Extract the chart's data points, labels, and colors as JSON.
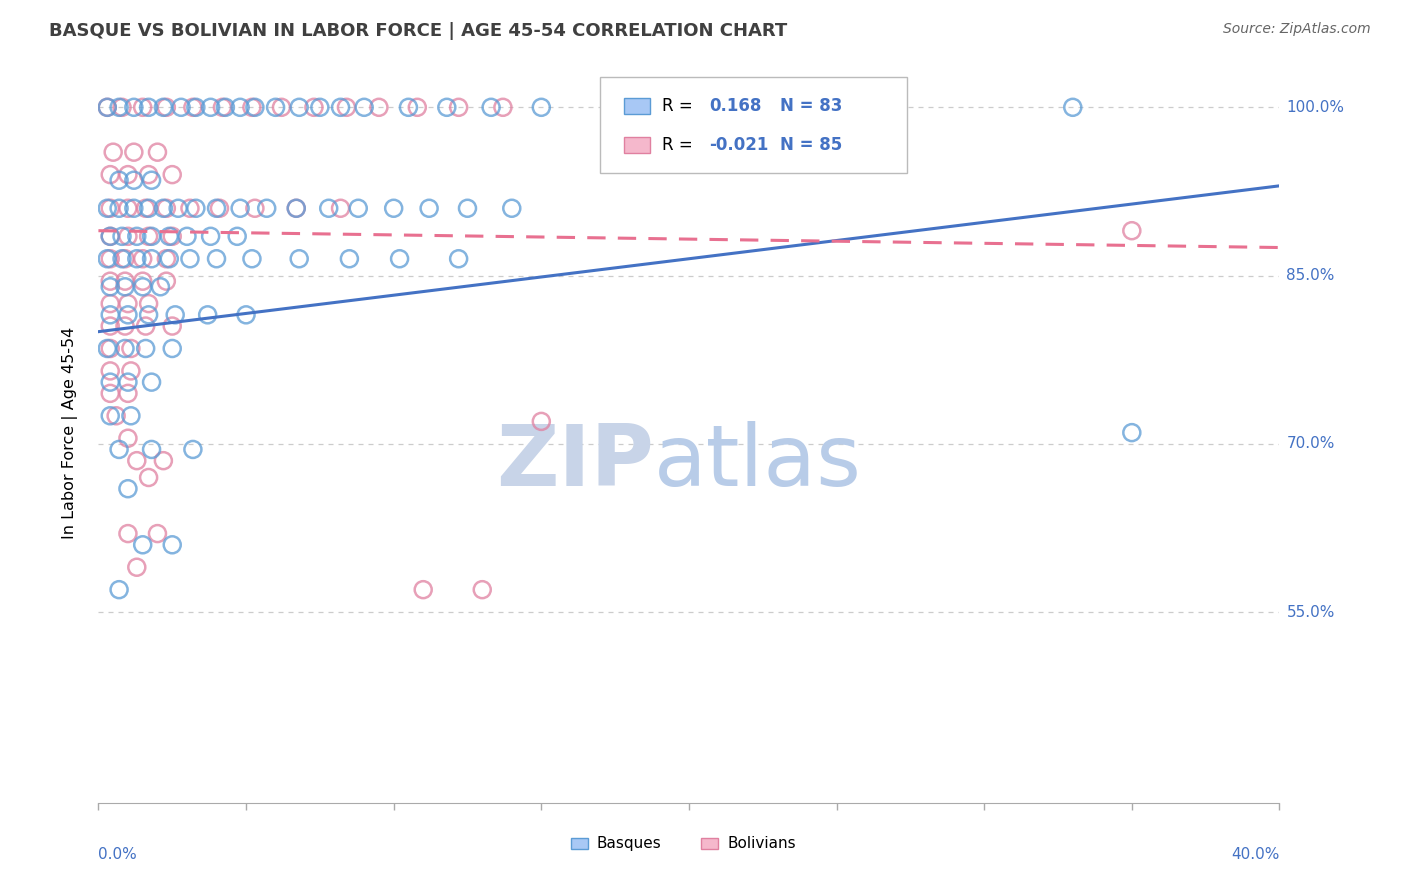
{
  "title": "BASQUE VS BOLIVIAN IN LABOR FORCE | AGE 45-54 CORRELATION CHART",
  "source": "Source: ZipAtlas.com",
  "ylabel": "In Labor Force | Age 45-54",
  "xlim": [
    0.0,
    0.4
  ],
  "ylim": [
    0.38,
    1.04
  ],
  "yticks": [
    0.55,
    0.7,
    0.85,
    1.0
  ],
  "ytick_labels": [
    "55.0%",
    "70.0%",
    "85.0%",
    "100.0%"
  ],
  "xtick_left": "0.0%",
  "xtick_right": "40.0%",
  "watermark_ZIP": "ZIP",
  "watermark_atlas": "atlas",
  "legend_basque_R": "0.168",
  "legend_basque_N": "83",
  "legend_bolivian_R": "-0.021",
  "legend_bolivian_N": "85",
  "basque_fill": "#a8c8f5",
  "basque_edge": "#5b9bd5",
  "bolivian_fill": "#f5b8cc",
  "bolivian_edge": "#e080a0",
  "basque_line": "#4472c4",
  "bolivian_line": "#e87090",
  "grid_color": "#cccccc",
  "basque_x": [
    0.003,
    0.007,
    0.012,
    0.017,
    0.022,
    0.028,
    0.033,
    0.038,
    0.043,
    0.048,
    0.053,
    0.06,
    0.068,
    0.075,
    0.082,
    0.09,
    0.105,
    0.118,
    0.133,
    0.15,
    0.007,
    0.012,
    0.018,
    0.003,
    0.007,
    0.012,
    0.017,
    0.022,
    0.027,
    0.033,
    0.04,
    0.048,
    0.057,
    0.067,
    0.078,
    0.088,
    0.1,
    0.112,
    0.125,
    0.14,
    0.004,
    0.008,
    0.013,
    0.018,
    0.024,
    0.03,
    0.038,
    0.047,
    0.003,
    0.008,
    0.013,
    0.018,
    0.024,
    0.031,
    0.04,
    0.052,
    0.068,
    0.085,
    0.102,
    0.122,
    0.004,
    0.009,
    0.015,
    0.021,
    0.004,
    0.01,
    0.017,
    0.026,
    0.037,
    0.05,
    0.003,
    0.009,
    0.016,
    0.025,
    0.004,
    0.01,
    0.018,
    0.004,
    0.011,
    0.007,
    0.018,
    0.032,
    0.01,
    0.015,
    0.025,
    0.007,
    0.35,
    0.33
  ],
  "basque_y": [
    1.0,
    1.0,
    1.0,
    1.0,
    1.0,
    1.0,
    1.0,
    1.0,
    1.0,
    1.0,
    1.0,
    1.0,
    1.0,
    1.0,
    1.0,
    1.0,
    1.0,
    1.0,
    1.0,
    1.0,
    0.935,
    0.935,
    0.935,
    0.91,
    0.91,
    0.91,
    0.91,
    0.91,
    0.91,
    0.91,
    0.91,
    0.91,
    0.91,
    0.91,
    0.91,
    0.91,
    0.91,
    0.91,
    0.91,
    0.91,
    0.885,
    0.885,
    0.885,
    0.885,
    0.885,
    0.885,
    0.885,
    0.885,
    0.865,
    0.865,
    0.865,
    0.865,
    0.865,
    0.865,
    0.865,
    0.865,
    0.865,
    0.865,
    0.865,
    0.865,
    0.84,
    0.84,
    0.84,
    0.84,
    0.815,
    0.815,
    0.815,
    0.815,
    0.815,
    0.815,
    0.785,
    0.785,
    0.785,
    0.785,
    0.755,
    0.755,
    0.755,
    0.725,
    0.725,
    0.695,
    0.695,
    0.695,
    0.66,
    0.61,
    0.61,
    0.57,
    0.71,
    1.0
  ],
  "bolivian_x": [
    0.003,
    0.008,
    0.015,
    0.023,
    0.032,
    0.042,
    0.052,
    0.062,
    0.073,
    0.084,
    0.095,
    0.108,
    0.122,
    0.137,
    0.005,
    0.012,
    0.02,
    0.004,
    0.01,
    0.017,
    0.025,
    0.004,
    0.01,
    0.016,
    0.023,
    0.031,
    0.041,
    0.053,
    0.067,
    0.082,
    0.004,
    0.01,
    0.017,
    0.025,
    0.004,
    0.009,
    0.015,
    0.023,
    0.004,
    0.009,
    0.015,
    0.023,
    0.004,
    0.01,
    0.017,
    0.004,
    0.009,
    0.016,
    0.025,
    0.004,
    0.011,
    0.004,
    0.011,
    0.004,
    0.01,
    0.006,
    0.01,
    0.013,
    0.022,
    0.017,
    0.15,
    0.01,
    0.02,
    0.013,
    0.11,
    0.13,
    0.35
  ],
  "bolivian_y": [
    1.0,
    1.0,
    1.0,
    1.0,
    1.0,
    1.0,
    1.0,
    1.0,
    1.0,
    1.0,
    1.0,
    1.0,
    1.0,
    1.0,
    0.96,
    0.96,
    0.96,
    0.94,
    0.94,
    0.94,
    0.94,
    0.91,
    0.91,
    0.91,
    0.91,
    0.91,
    0.91,
    0.91,
    0.91,
    0.91,
    0.885,
    0.885,
    0.885,
    0.885,
    0.865,
    0.865,
    0.865,
    0.865,
    0.845,
    0.845,
    0.845,
    0.845,
    0.825,
    0.825,
    0.825,
    0.805,
    0.805,
    0.805,
    0.805,
    0.785,
    0.785,
    0.765,
    0.765,
    0.745,
    0.745,
    0.725,
    0.705,
    0.685,
    0.685,
    0.67,
    0.72,
    0.62,
    0.62,
    0.59,
    0.57,
    0.57,
    0.89
  ],
  "basque_trend_x": [
    0.0,
    0.4
  ],
  "basque_trend_y": [
    0.8,
    0.93
  ],
  "bolivian_trend_x": [
    0.0,
    0.4
  ],
  "bolivian_trend_y": [
    0.89,
    0.875
  ]
}
